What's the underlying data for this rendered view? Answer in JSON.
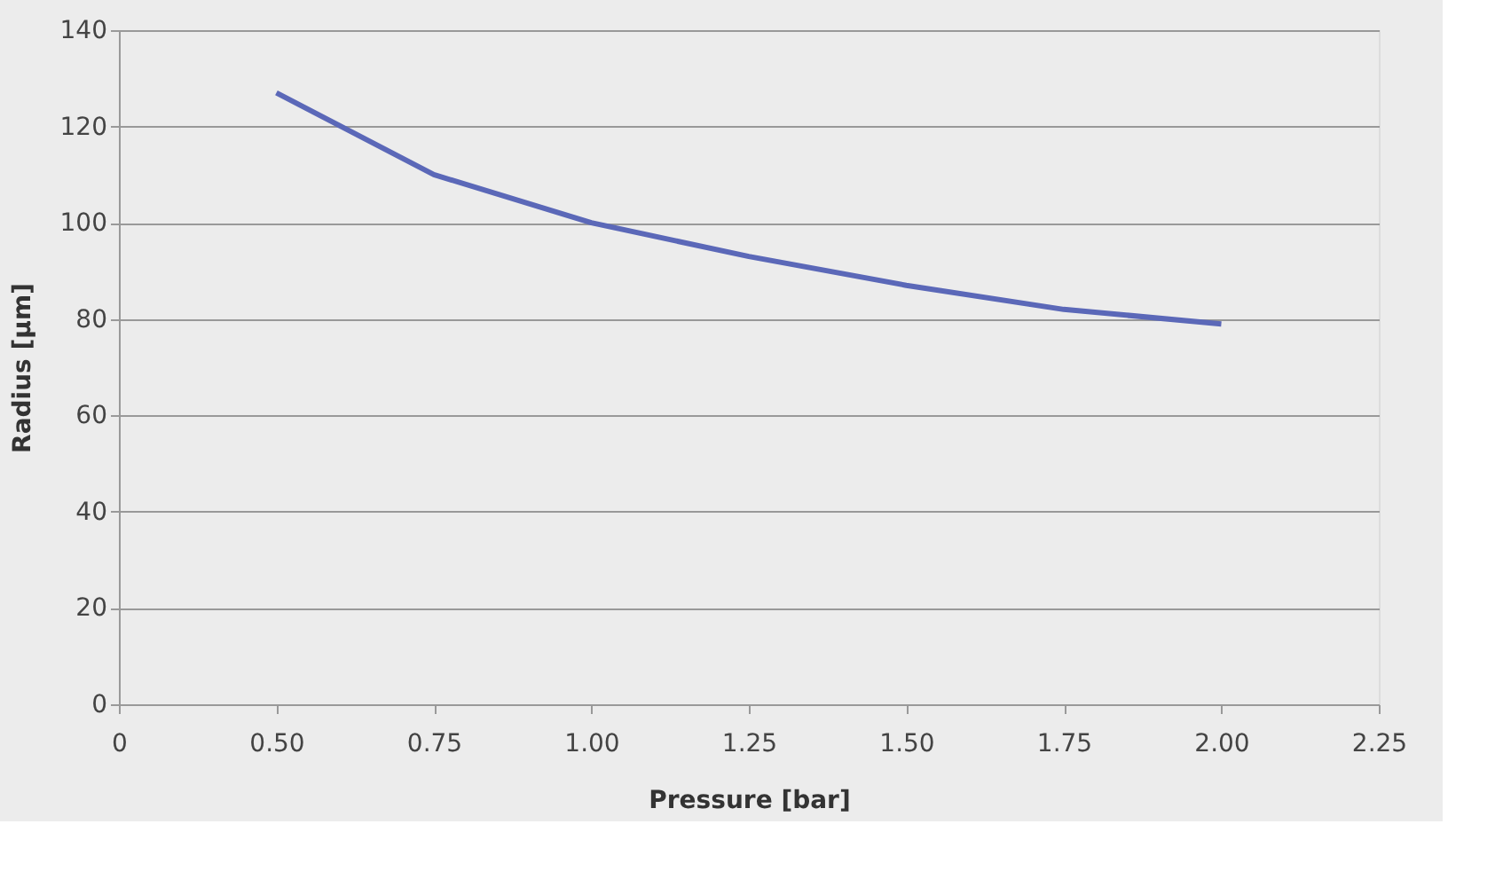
{
  "chart_data": {
    "type": "line",
    "xlabel": "Pressure [bar]",
    "ylabel": "Radius [µm]",
    "categories": [
      "0",
      "0.50",
      "0.75",
      "1.00",
      "1.25",
      "1.50",
      "1.75",
      "2.00",
      "2.25"
    ],
    "series": [
      {
        "color": "#5b68b8",
        "values": [
          null,
          127,
          110,
          100,
          93,
          87,
          82,
          79,
          null
        ]
      }
    ],
    "ylim": [
      0,
      140
    ],
    "yticks": [
      0,
      20,
      40,
      60,
      80,
      100,
      120,
      140
    ],
    "grid": "y",
    "legend": false,
    "marker": "none",
    "line_style": "solid"
  }
}
